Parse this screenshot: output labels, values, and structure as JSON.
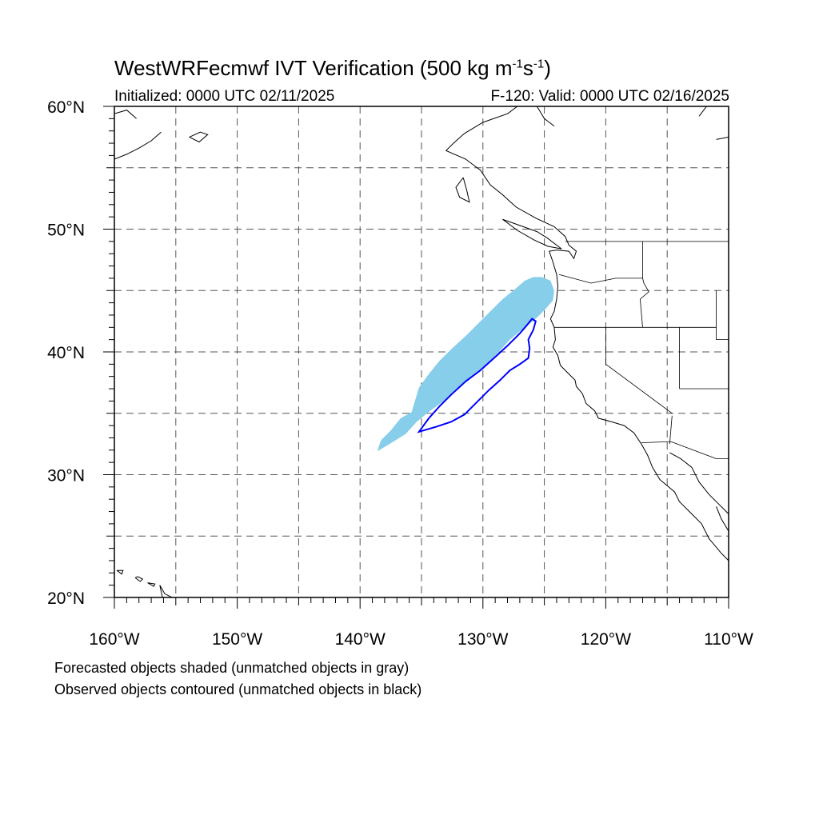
{
  "title": {
    "main": "WestWRFecmwf IVT Verification (500 kg m",
    "sup1": "-1",
    "mid": "s",
    "sup2": "-1",
    "end": ")"
  },
  "initialized": "Initialized: 0000 UTC 02/11/2025",
  "valid": "F-120: Valid: 0000 UTC 02/16/2025",
  "map": {
    "lon_range": [
      -160,
      -110
    ],
    "lat_range": [
      20,
      60
    ],
    "lat_labels": [
      {
        "lat": 60,
        "text": "60°N"
      },
      {
        "lat": 50,
        "text": "50°N"
      },
      {
        "lat": 40,
        "text": "40°N"
      },
      {
        "lat": 30,
        "text": "30°N"
      },
      {
        "lat": 20,
        "text": "20°N"
      }
    ],
    "lon_labels": [
      {
        "lon": -160,
        "text": "160°W"
      },
      {
        "lon": -150,
        "text": "150°W"
      },
      {
        "lon": -140,
        "text": "140°W"
      },
      {
        "lon": -130,
        "text": "130°W"
      },
      {
        "lon": -120,
        "text": "120°W"
      },
      {
        "lon": -110,
        "text": "110°W"
      }
    ],
    "grid_interval_deg": 5,
    "grid_style": "dashed",
    "colors": {
      "forecast_fill": "#87ceeb",
      "observed_contour": "#0000ff",
      "coastline": "#000000",
      "grid": "#555555"
    },
    "forecast_object": [
      [
        -138.6,
        31.9
      ],
      [
        -137.6,
        32.5
      ],
      [
        -136.3,
        33.3
      ],
      [
        -135.4,
        34.3
      ],
      [
        -134.3,
        35.2
      ],
      [
        -133.2,
        36.0
      ],
      [
        -132.3,
        36.9
      ],
      [
        -131.4,
        37.6
      ],
      [
        -130.3,
        38.4
      ],
      [
        -129.5,
        39.2
      ],
      [
        -128.7,
        40.0
      ],
      [
        -127.8,
        41.0
      ],
      [
        -126.7,
        41.9
      ],
      [
        -125.7,
        42.7
      ],
      [
        -124.9,
        43.5
      ],
      [
        -124.3,
        44.2
      ],
      [
        -124.2,
        45.0
      ],
      [
        -124.5,
        45.8
      ],
      [
        -125.2,
        46.1
      ],
      [
        -125.9,
        46.1
      ],
      [
        -126.6,
        45.8
      ],
      [
        -127.4,
        45.1
      ],
      [
        -128.4,
        44.3
      ],
      [
        -129.4,
        43.3
      ],
      [
        -130.4,
        42.3
      ],
      [
        -131.4,
        41.3
      ],
      [
        -132.6,
        40.2
      ],
      [
        -133.6,
        39.2
      ],
      [
        -134.4,
        38.2
      ],
      [
        -135.2,
        37.1
      ],
      [
        -135.6,
        35.8
      ],
      [
        -135.8,
        35.1
      ],
      [
        -136.7,
        34.6
      ],
      [
        -137.5,
        33.6
      ],
      [
        -138.3,
        32.8
      ]
    ],
    "observed_object": [
      [
        -135.2,
        33.5
      ],
      [
        -134.4,
        34.6
      ],
      [
        -133.5,
        35.6
      ],
      [
        -132.5,
        36.6
      ],
      [
        -131.4,
        37.6
      ],
      [
        -130.2,
        38.5
      ],
      [
        -129.1,
        39.5
      ],
      [
        -128.0,
        40.5
      ],
      [
        -127.0,
        41.5
      ],
      [
        -126.4,
        42.2
      ],
      [
        -126.0,
        42.7
      ],
      [
        -125.7,
        42.5
      ],
      [
        -125.9,
        41.8
      ],
      [
        -126.3,
        41.0
      ],
      [
        -126.2,
        40.3
      ],
      [
        -126.3,
        39.5
      ],
      [
        -127.0,
        39.0
      ],
      [
        -127.8,
        38.5
      ],
      [
        -128.6,
        37.7
      ],
      [
        -129.5,
        36.9
      ],
      [
        -130.5,
        35.9
      ],
      [
        -131.5,
        34.9
      ],
      [
        -132.6,
        34.3
      ],
      [
        -133.8,
        33.9
      ]
    ]
  },
  "footer": {
    "line1": "Forecasted objects shaded (unmatched objects in gray)",
    "line2": "Observed objects contoured (unmatched objects in black)"
  }
}
